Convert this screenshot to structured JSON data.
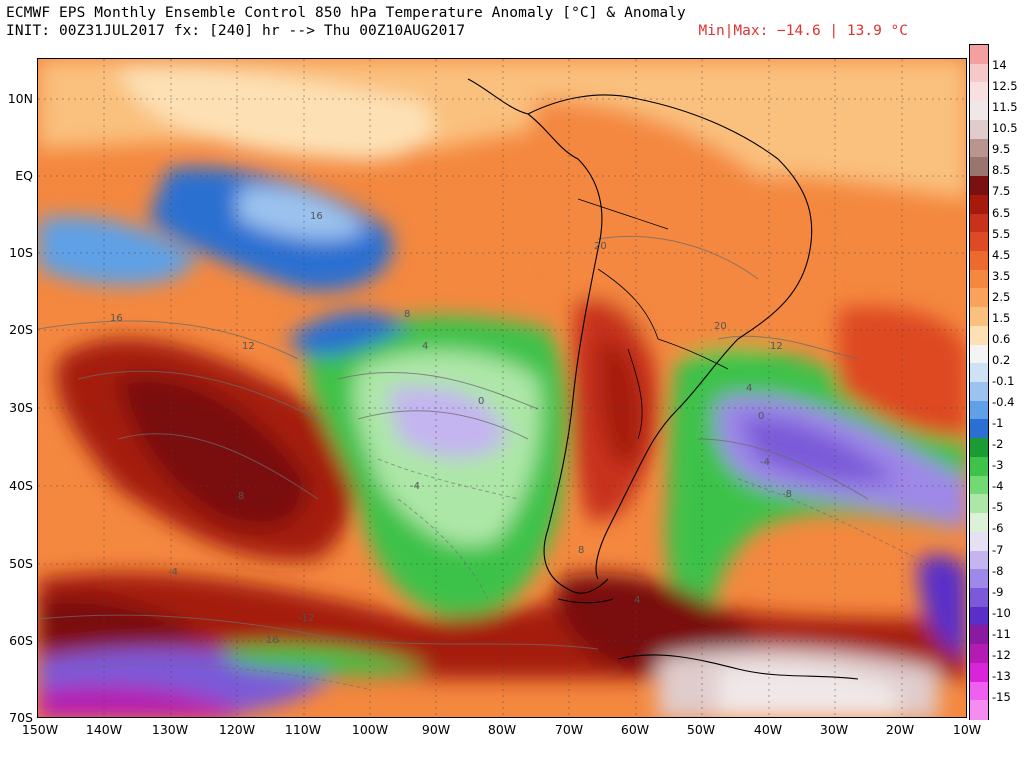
{
  "header": {
    "title_line1": "ECMWF EPS Monthly Ensemble Control 850 hPa Temperature Anomaly [°C] & Anomaly",
    "title_line2": "INIT: 00Z31JUL2017 fx: [240] hr --> Thu 00Z10AUG2017",
    "minmax": "Min|Max: −14.6 | 13.9 °C"
  },
  "map": {
    "lat_labels": [
      "10N",
      "EQ",
      "10S",
      "20S",
      "30S",
      "40S",
      "50S",
      "60S",
      "70S"
    ],
    "lon_labels": [
      "150W",
      "140W",
      "130W",
      "120W",
      "110W",
      "100W",
      "90W",
      "80W",
      "70W",
      "60W",
      "50W",
      "40W",
      "30W",
      "20W",
      "10W"
    ],
    "contour_labels": [
      "16",
      "16",
      "20",
      "20",
      "12",
      "12",
      "8",
      "4",
      "0",
      "-4",
      "8",
      "4",
      "0",
      "-4",
      "-8",
      "-4",
      "8",
      "4",
      "-12",
      "16"
    ]
  },
  "colorbar": {
    "labels": [
      "14",
      "12.5",
      "11.5",
      "10.5",
      "9.5",
      "8.5",
      "7.5",
      "6.5",
      "5.5",
      "4.5",
      "3.5",
      "2.5",
      "1.5",
      "0.6",
      "0.2",
      "-0.1",
      "-0.4",
      "-1",
      "-2",
      "-3",
      "-4",
      "-5",
      "-6",
      "-7",
      "-8",
      "-9",
      "-10",
      "-11",
      "-12",
      "-13",
      "-15"
    ],
    "colors": [
      "#f4a0a0",
      "#f6c8c8",
      "#f8e0e0",
      "#f0e8e8",
      "#e0cccc",
      "#b8958f",
      "#9a7570",
      "#7a1010",
      "#a51a0d",
      "#c8321c",
      "#de4a23",
      "#ec6a2e",
      "#f4883f",
      "#f8a25c",
      "#fac07d",
      "#fde1b5",
      "#f4f4f4",
      "#cfe2f5",
      "#9cc3ef",
      "#5fa0e6",
      "#2a6fd1",
      "#1b9b33",
      "#3ec24a",
      "#72da72",
      "#ade7a7",
      "#ddf1d8",
      "#e6e0f5",
      "#c4b4f0",
      "#9e88e8",
      "#7a5ad8",
      "#5a2ec8",
      "#8a1aa0",
      "#b41ab4",
      "#da24da",
      "#f060f0",
      "#f48cf2"
    ]
  }
}
